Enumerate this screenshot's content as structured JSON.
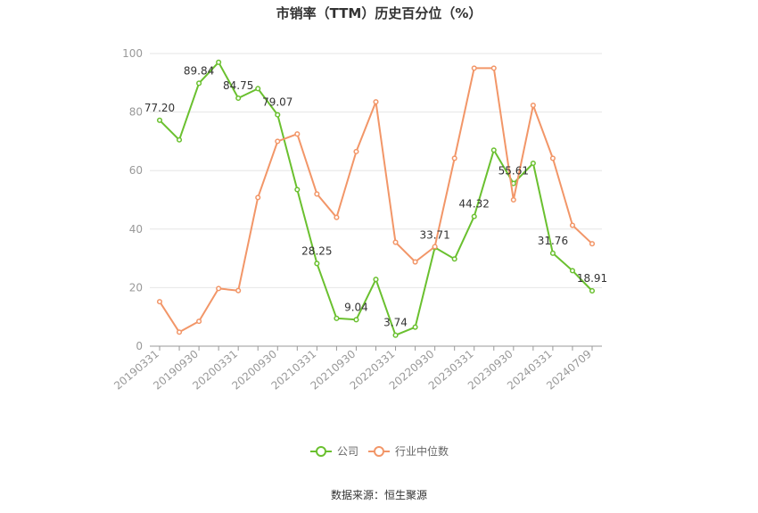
{
  "chart_data": {
    "type": "line",
    "title": "市销率（TTM）历史百分位（%）",
    "source": "数据来源：恒生聚源",
    "ylim": [
      0,
      100
    ],
    "yticks": [
      0,
      20,
      40,
      60,
      80,
      100
    ],
    "grid": true,
    "legend_position": "bottom-center",
    "x_tick_labels": [
      "20190331",
      "20190930",
      "20200331",
      "20200930",
      "20210331",
      "20210930",
      "20220331",
      "20220930",
      "20230331",
      "20230930",
      "20240331",
      "20240709"
    ],
    "x": [
      "20190331",
      "20190630",
      "20190930",
      "20191231",
      "20200331",
      "20200630",
      "20200930",
      "20201231",
      "20210331",
      "20210630",
      "20210930",
      "20211231",
      "20220331",
      "20220630",
      "20220930",
      "20221231",
      "20230331",
      "20230630",
      "20230930",
      "20231231",
      "20240331",
      "20240630",
      "20240709"
    ],
    "series": [
      {
        "name": "公司",
        "color": "#6ac02f",
        "values": [
          77.2,
          70.5,
          89.84,
          97.0,
          84.75,
          88.0,
          79.07,
          53.5,
          28.25,
          9.5,
          9.04,
          22.8,
          3.74,
          6.5,
          33.71,
          29.8,
          44.32,
          67.0,
          55.61,
          62.5,
          31.76,
          25.8,
          18.91
        ],
        "labels": [
          "77.20",
          "",
          "89.84",
          "",
          "84.75",
          "",
          "79.07",
          "",
          "28.25",
          "",
          "9.04",
          "",
          "3.74",
          "",
          "33.71",
          "",
          "44.32",
          "",
          "55.61",
          "",
          "31.76",
          "",
          "18.91"
        ]
      },
      {
        "name": "行业中位数",
        "color": "#f29668",
        "values": [
          15.2,
          4.8,
          8.5,
          19.7,
          19.0,
          50.8,
          70.0,
          72.5,
          52.0,
          44.0,
          66.5,
          83.5,
          35.5,
          28.8,
          34.0,
          64.2,
          95.0,
          95.0,
          50.0,
          82.3,
          64.2,
          41.3,
          35.0
        ]
      }
    ]
  }
}
